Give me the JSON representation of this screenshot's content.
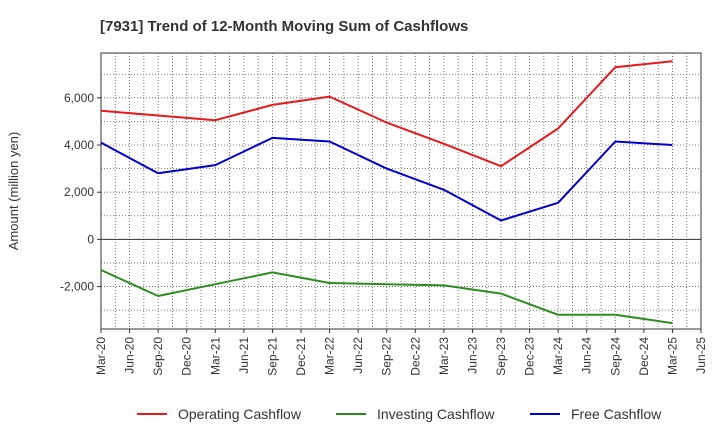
{
  "chart_data": {
    "type": "line",
    "title": "[7931]  Trend of 12-Month Moving Sum of Cashflows",
    "xlabel": "",
    "ylabel": "Amount (million yen)",
    "x_ticks": [
      "Mar-20",
      "Jun-20",
      "Sep-20",
      "Dec-20",
      "Mar-21",
      "Jun-21",
      "Sep-21",
      "Dec-21",
      "Mar-22",
      "Jun-22",
      "Sep-22",
      "Dec-22",
      "Mar-23",
      "Jun-23",
      "Sep-23",
      "Dec-23",
      "Mar-24",
      "Jun-24",
      "Sep-24",
      "Dec-24",
      "Mar-25",
      "Jun-25"
    ],
    "y_ticks": [
      -2000,
      0,
      2000,
      4000,
      6000
    ],
    "y_tick_labels": [
      "-2,000",
      "0",
      "2,000",
      "4,000",
      "6,000"
    ],
    "ylim": [
      -3800,
      7900
    ],
    "grid": true,
    "legend_position": "bottom",
    "series": [
      {
        "name": "Operating Cashflow",
        "color": "#e41a1c",
        "points": [
          {
            "x": "Mar-20",
            "y": 5450
          },
          {
            "x": "Sep-20",
            "y": 5250
          },
          {
            "x": "Mar-21",
            "y": 5050
          },
          {
            "x": "Sep-21",
            "y": 5700
          },
          {
            "x": "Mar-22",
            "y": 6050
          },
          {
            "x": "Sep-22",
            "y": 4950
          },
          {
            "x": "Mar-23",
            "y": 4050
          },
          {
            "x": "Sep-23",
            "y": 3100
          },
          {
            "x": "Mar-24",
            "y": 4700
          },
          {
            "x": "Sep-24",
            "y": 7300
          },
          {
            "x": "Mar-25",
            "y": 7550
          }
        ]
      },
      {
        "name": "Investing Cashflow",
        "color": "#2e8b22",
        "points": [
          {
            "x": "Mar-20",
            "y": -1300
          },
          {
            "x": "Sep-20",
            "y": -2400
          },
          {
            "x": "Mar-21",
            "y": -1900
          },
          {
            "x": "Sep-21",
            "y": -1400
          },
          {
            "x": "Mar-22",
            "y": -1850
          },
          {
            "x": "Sep-22",
            "y": -1900
          },
          {
            "x": "Mar-23",
            "y": -1950
          },
          {
            "x": "Sep-23",
            "y": -2300
          },
          {
            "x": "Mar-24",
            "y": -3200
          },
          {
            "x": "Sep-24",
            "y": -3200
          },
          {
            "x": "Mar-25",
            "y": -3550
          }
        ]
      },
      {
        "name": "Free Cashflow",
        "color": "#0000cc",
        "points": [
          {
            "x": "Mar-20",
            "y": 4100
          },
          {
            "x": "Sep-20",
            "y": 2800
          },
          {
            "x": "Mar-21",
            "y": 3150
          },
          {
            "x": "Sep-21",
            "y": 4300
          },
          {
            "x": "Mar-22",
            "y": 4150
          },
          {
            "x": "Sep-22",
            "y": 3000
          },
          {
            "x": "Mar-23",
            "y": 2100
          },
          {
            "x": "Sep-23",
            "y": 800
          },
          {
            "x": "Mar-24",
            "y": 1550
          },
          {
            "x": "Sep-24",
            "y": 4150
          },
          {
            "x": "Mar-25",
            "y": 4000
          }
        ]
      }
    ]
  }
}
